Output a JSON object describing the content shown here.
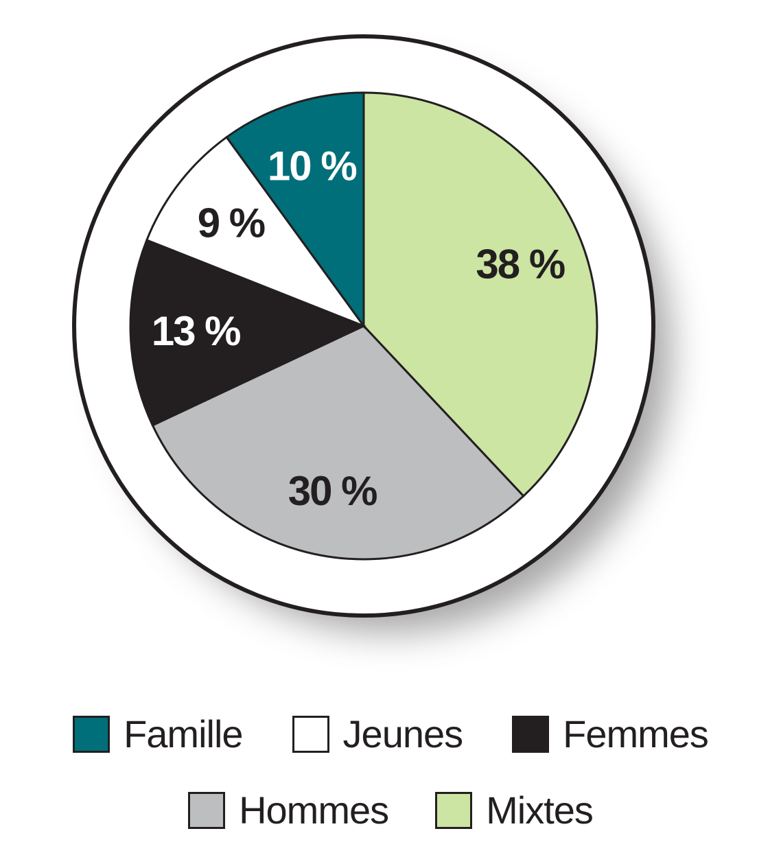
{
  "chart_data": {
    "type": "pie",
    "slices": [
      {
        "name": "Mixtes",
        "value": 38,
        "label": "38 %",
        "color": "#cce5a3",
        "label_color": "#231f20"
      },
      {
        "name": "Hommes",
        "value": 30,
        "label": "30 %",
        "color": "#bcbec0",
        "label_color": "#231f20"
      },
      {
        "name": "Femmes",
        "value": 13,
        "label": "13 %",
        "color": "#231f20",
        "label_color": "#ffffff"
      },
      {
        "name": "Jeunes",
        "value": 9,
        "label": "9 %",
        "color": "#ffffff",
        "label_color": "#231f20"
      },
      {
        "name": "Famille",
        "value": 10,
        "label": "10 %",
        "color": "#006f7a",
        "label_color": "#ffffff"
      }
    ],
    "start_angle_deg": 0,
    "direction": "clockwise",
    "legend": {
      "placement": "bottom",
      "rows": [
        [
          {
            "label": "Famille",
            "color": "#006f7a"
          },
          {
            "label": "Jeunes",
            "color": "#ffffff"
          },
          {
            "label": "Femmes",
            "color": "#231f20"
          }
        ],
        [
          {
            "label": "Hommes",
            "color": "#bcbec0"
          },
          {
            "label": "Mixtes",
            "color": "#cce5a3"
          }
        ]
      ]
    }
  },
  "colors": {
    "outline": "#231f20",
    "background": "#ffffff",
    "shadow": "#8a8a8a"
  }
}
